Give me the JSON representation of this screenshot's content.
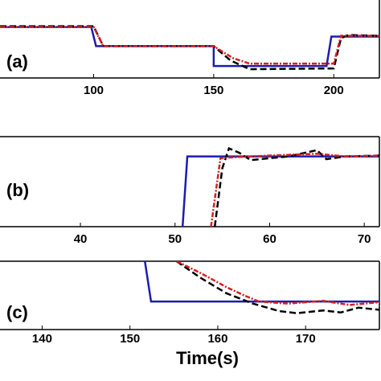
{
  "chart_data": [
    {
      "type": "line",
      "label": "(a)",
      "xlim": [
        61,
        219
      ],
      "xticks": [
        100,
        150,
        200
      ],
      "ylim": [
        0,
        10
      ],
      "series": [
        {
          "color": "#1c1cb0",
          "linestyle": "solid",
          "x": [
            61,
            99,
            101,
            150,
            150,
            197,
            199,
            219
          ],
          "values": [
            6.4,
            6.4,
            4.0,
            4.0,
            1.5,
            1.5,
            5.2,
            5.2
          ]
        },
        {
          "color": "#000000",
          "linestyle": "dashed",
          "x": [
            61,
            100,
            104,
            150,
            157,
            165,
            200,
            203,
            206,
            219
          ],
          "values": [
            6.5,
            6.5,
            4.0,
            4.0,
            2.2,
            1.1,
            1.2,
            5.0,
            5.4,
            5.3
          ]
        },
        {
          "color": "#d42020",
          "linestyle": "dashdot",
          "x": [
            61,
            100,
            104,
            150,
            158,
            165,
            200,
            203,
            219
          ],
          "values": [
            6.4,
            6.4,
            4.0,
            4.0,
            2.5,
            1.8,
            1.8,
            5.3,
            5.3
          ]
        }
      ]
    },
    {
      "type": "line",
      "label": "(b)",
      "xlim": [
        31.5,
        71.6
      ],
      "xticks": [
        40,
        50,
        60,
        70
      ],
      "ylim": [
        0,
        10
      ],
      "series": [
        {
          "color": "#1c1cb0",
          "linestyle": "solid",
          "x": [
            50.8,
            51.3,
            71.6
          ],
          "values": [
            0,
            7.8,
            7.8
          ]
        },
        {
          "color": "#000000",
          "linestyle": "dashed",
          "x": [
            54.2,
            55.0,
            55.7,
            56.8,
            58,
            62,
            65,
            66,
            68,
            71.6
          ],
          "values": [
            0,
            6.5,
            8.7,
            8.2,
            7.4,
            7.8,
            8.5,
            7.5,
            7.8,
            7.9
          ]
        },
        {
          "color": "#d42020",
          "linestyle": "dashdot",
          "x": [
            53.8,
            54.8,
            56,
            60,
            65,
            68,
            71.6
          ],
          "values": [
            0,
            7.6,
            7.7,
            7.9,
            8.1,
            7.8,
            7.9
          ]
        }
      ]
    },
    {
      "type": "line",
      "label": "(c)",
      "xlim": [
        135.2,
        178.4
      ],
      "xticks": [
        140,
        150,
        160,
        170
      ],
      "ylim": [
        0,
        10
      ],
      "xlabel": "Time(s)",
      "series": [
        {
          "color": "#1c1cb0",
          "linestyle": "solid",
          "x": [
            151.7,
            152.4,
            178.4
          ],
          "values": [
            10,
            4.1,
            4.1
          ]
        },
        {
          "color": "#000000",
          "linestyle": "dashed",
          "x": [
            155.3,
            158,
            161,
            164,
            167,
            169,
            172,
            174,
            176,
            178.4
          ],
          "values": [
            10,
            7.6,
            5.3,
            3.8,
            2.7,
            2.4,
            2.8,
            2.5,
            3.2,
            2.9
          ]
        },
        {
          "color": "#d42020",
          "linestyle": "dashdot",
          "x": [
            155.3,
            158,
            161,
            163,
            164.7,
            168,
            172,
            175,
            178.4
          ],
          "values": [
            10,
            8.3,
            6.2,
            5.0,
            4.1,
            3.8,
            4.2,
            3.6,
            4.0
          ]
        }
      ]
    }
  ]
}
